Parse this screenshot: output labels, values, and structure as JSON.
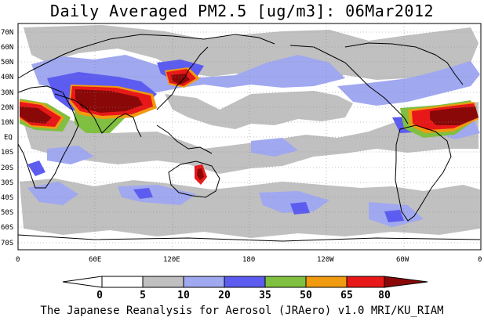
{
  "title": "Daily Averaged PM2.5 [ug/m3]: 06Mar2012",
  "footer": "The Japanese Reanalysis for Aerosol (JRAero) v1.0 MRI/KU_RIAM",
  "map": {
    "projection": "equirectangular",
    "lon_range": [
      0,
      360
    ],
    "lat_range": [
      -75,
      75
    ],
    "background": "#ffffff",
    "grid": "dotted",
    "lat_ticks": [
      "70N",
      "60N",
      "50N",
      "40N",
      "30N",
      "20N",
      "10N",
      "EQ",
      "10S",
      "20S",
      "30S",
      "40S",
      "50S",
      "60S",
      "70S"
    ],
    "lon_ticks": [
      "0",
      "60E",
      "120E",
      "180",
      "120W",
      "60W",
      "0"
    ],
    "fields": [
      {
        "level": "5-10",
        "color": "#c0c0c0",
        "regions": [
          "north hemisphere storm track 30N-60N",
          "southern ocean 40S-60S",
          "tropical atlantic",
          "east pacific near equator"
        ]
      },
      {
        "level": "10-20",
        "color": "#a0a8f0",
        "regions": [
          "east asia outflow over pacific",
          "south of africa",
          "south atlantic 45S",
          "southern ocean near south america"
        ]
      },
      {
        "level": "20-35",
        "color": "#5c5cf0",
        "regions": [
          "india",
          "south atlantic patches",
          "east pacific"
        ]
      },
      {
        "level": "35-50",
        "color": "#80c040",
        "regions": [
          "india border",
          "north africa edge"
        ]
      },
      {
        "level": "50-65",
        "color": "#f09a10",
        "regions": [
          "sahara edge",
          "arabia",
          "china"
        ]
      },
      {
        "level": "65-80",
        "color": "#e81818",
        "regions": [
          "north africa",
          "arabia",
          "east china",
          "west africa near 0 lon"
        ]
      },
      {
        "level": ">80",
        "color": "#8a0808",
        "regions": [
          "sahara 10N-20N",
          "arabian peninsula",
          "sichuan basin",
          "central australia"
        ]
      }
    ]
  },
  "colorbar": {
    "labels": [
      "0",
      "5",
      "10",
      "20",
      "35",
      "50",
      "65",
      "80"
    ],
    "colors": [
      "#ffffff",
      "#ffffff",
      "#c0c0c0",
      "#a0a8f0",
      "#5c5cf0",
      "#80c040",
      "#f09a10",
      "#e81818",
      "#8a0808"
    ]
  }
}
